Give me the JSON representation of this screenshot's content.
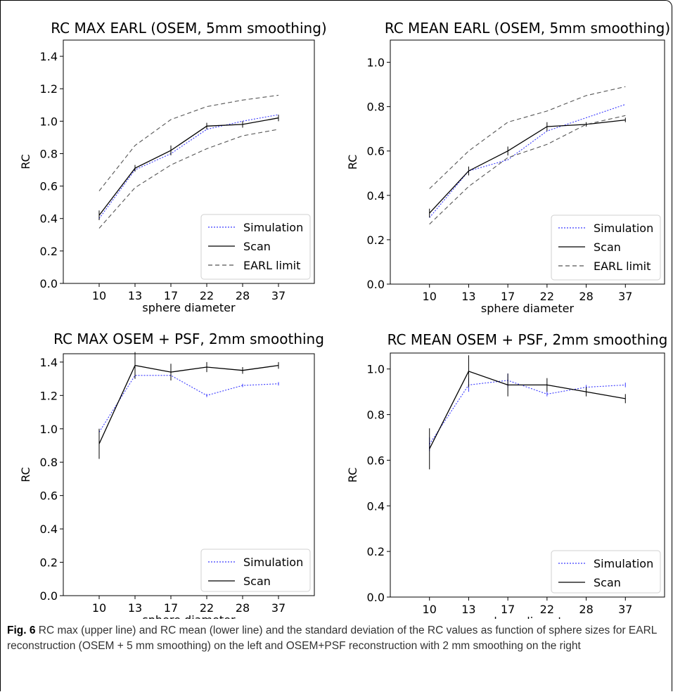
{
  "chart_data": [
    {
      "type": "line",
      "title": "RC MAX EARL (OSEM, 5mm smoothing)",
      "xlabel": "sphere diameter",
      "ylabel": "RC",
      "categories": [
        "10",
        "13",
        "17",
        "22",
        "28",
        "37"
      ],
      "yticks": [
        "0.0",
        "0.2",
        "0.4",
        "0.6",
        "0.8",
        "1.0",
        "1.2",
        "1.4"
      ],
      "ylim": [
        0,
        1.5
      ],
      "legend_position": "bottom-right",
      "series": [
        {
          "name": "Simulation",
          "style": "dotted",
          "color": "#3a3aff",
          "values": [
            0.4,
            0.7,
            0.8,
            0.95,
            1.0,
            1.04
          ]
        },
        {
          "name": "Scan",
          "style": "solid",
          "color": "#000000",
          "values": [
            0.42,
            0.71,
            0.82,
            0.97,
            0.98,
            1.02
          ],
          "err": [
            0.03,
            0.02,
            0.03,
            0.02,
            0.02,
            0.02
          ]
        },
        {
          "name": "EARL limit",
          "style": "dashed",
          "color": "#555555",
          "values": [
            0.57,
            0.85,
            1.01,
            1.09,
            1.13,
            1.16
          ]
        },
        {
          "name": "",
          "legend": false,
          "style": "dashed",
          "color": "#555555",
          "values": [
            0.34,
            0.59,
            0.73,
            0.83,
            0.91,
            0.95
          ]
        }
      ]
    },
    {
      "type": "line",
      "title": "RC MEAN EARL (OSEM, 5mm smoothing)",
      "xlabel": "sphere diameter",
      "ylabel": "RC",
      "categories": [
        "10",
        "13",
        "17",
        "22",
        "28",
        "37"
      ],
      "yticks": [
        "0.0",
        "0.2",
        "0.4",
        "0.6",
        "0.8",
        "1.0"
      ],
      "ylim": [
        0,
        1.1
      ],
      "legend_position": "bottom-right",
      "series": [
        {
          "name": "Simulation",
          "style": "dotted",
          "color": "#3a3aff",
          "values": [
            0.3,
            0.51,
            0.56,
            0.69,
            0.75,
            0.81
          ]
        },
        {
          "name": "Scan",
          "style": "solid",
          "color": "#000000",
          "values": [
            0.32,
            0.51,
            0.6,
            0.71,
            0.72,
            0.74
          ],
          "err": [
            0.02,
            0.02,
            0.02,
            0.02,
            0.01,
            0.01
          ]
        },
        {
          "name": "EARL limit",
          "style": "dashed",
          "color": "#555555",
          "values": [
            0.43,
            0.6,
            0.73,
            0.78,
            0.85,
            0.89
          ]
        },
        {
          "name": "",
          "legend": false,
          "style": "dashed",
          "color": "#555555",
          "values": [
            0.27,
            0.44,
            0.57,
            0.63,
            0.72,
            0.76
          ]
        }
      ]
    },
    {
      "type": "line",
      "title": "RC MAX OSEM + PSF, 2mm smoothing",
      "xlabel": "sphere diameter",
      "ylabel": "RC",
      "categories": [
        "10",
        "13",
        "17",
        "22",
        "28",
        "37"
      ],
      "yticks": [
        "0.0",
        "0.2",
        "0.4",
        "0.6",
        "0.8",
        "1.0",
        "1.2",
        "1.4"
      ],
      "ylim": [
        0,
        1.45
      ],
      "legend_position": "bottom-right",
      "series": [
        {
          "name": "Simulation",
          "style": "dotted",
          "color": "#3a3aff",
          "values": [
            0.98,
            1.32,
            1.32,
            1.2,
            1.26,
            1.27
          ],
          "err": [
            0.02,
            0.02,
            0.02,
            0.01,
            0.01,
            0.01
          ]
        },
        {
          "name": "Scan",
          "style": "solid",
          "color": "#000000",
          "values": [
            0.91,
            1.38,
            1.34,
            1.37,
            1.35,
            1.38
          ],
          "err": [
            0.09,
            0.08,
            0.05,
            0.03,
            0.02,
            0.02
          ]
        }
      ]
    },
    {
      "type": "line",
      "title": "RC MEAN OSEM + PSF, 2mm smoothing",
      "xlabel": "sphere diameter",
      "ylabel": "RC",
      "categories": [
        "10",
        "13",
        "17",
        "22",
        "28",
        "37"
      ],
      "yticks": [
        "0.0",
        "0.2",
        "0.4",
        "0.6",
        "0.8",
        "1.0"
      ],
      "ylim": [
        0,
        1.07
      ],
      "legend_position": "bottom-right",
      "series": [
        {
          "name": "Simulation",
          "style": "dotted",
          "color": "#3a3aff",
          "values": [
            0.67,
            0.93,
            0.95,
            0.89,
            0.92,
            0.93
          ],
          "err": [
            0.03,
            0.03,
            0.03,
            0.01,
            0.01,
            0.01
          ]
        },
        {
          "name": "Scan",
          "style": "solid",
          "color": "#000000",
          "values": [
            0.65,
            0.99,
            0.93,
            0.93,
            0.9,
            0.87
          ],
          "err": [
            0.09,
            0.07,
            0.05,
            0.03,
            0.02,
            0.02
          ]
        }
      ]
    }
  ],
  "caption": {
    "label": "Fig. 6",
    "text": " RC max (upper line) and RC mean (lower line) and the standard deviation of the RC values as function of sphere sizes for EARL reconstruction (OSEM + 5 mm smoothing) on the left and OSEM+PSF reconstruction with 2 mm smoothing on the right"
  }
}
